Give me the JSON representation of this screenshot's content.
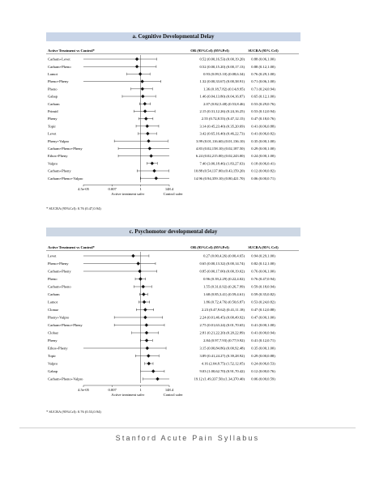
{
  "footer": {
    "text": "Stanford Acute Pain Syllabus"
  },
  "chart_data": [
    {
      "type": "forest",
      "title": "a. Cognitive Developmental Delay",
      "scale": "log",
      "xlim": [
        4.5e-05,
        148.4
      ],
      "x_ticks": [
        "4.5e-05",
        "0.007",
        "1",
        "148.4"
      ],
      "x_tick_values": [
        4.5e-05,
        0.007,
        1,
        148.4
      ],
      "left_axis_label": "Active treatment safer",
      "right_axis_label": "Control safer",
      "headers": {
        "treatment": "Active Treatment  vs Control*",
        "or": "OR (95%CrI) (95%PrI)",
        "sucra": "SUCRA (95% CrI)"
      },
      "footnote": "* SUCRA (95%CrI): 0.76 (0.47,0.94)",
      "rows": [
        {
          "label": "Carbam+Levet",
          "or": 0.52,
          "ci": [
            0.0,
            16.53
          ],
          "text": "0.52 (0.00,16.53) (0.00,19.20)",
          "sucra": "0.88 (0.06,1.00)"
        },
        {
          "label": "Carbam+Pheno",
          "or": 0.52,
          "ci": [
            0.0,
            15.2
          ],
          "text": "0.52 (0.00,15.20) (0.00,17.13)",
          "sucra": "0.88 (0.12,1.00)"
        },
        {
          "label": "Lamot",
          "or": 0.93,
          "ci": [
            0.09,
            5.1
          ],
          "text": "0.93 (0.09,5.10) (0.08,6.34)",
          "sucra": "0.76 (0.29,1.00)"
        },
        {
          "label": "Pheno+Pheny",
          "or": 1.32,
          "ci": [
            0.0,
            33.67
          ],
          "text": "1.32 (0.00,33.67) (0.00,38.91)",
          "sucra": "0.71 (0.06,1.00)"
        },
        {
          "label": "Pheno",
          "or": 1.36,
          "ci": [
            0.18,
            7.82
          ],
          "text": "1.36 (0.18,7.82) (0.14,8.95)",
          "sucra": "0.71 (0.24,0.94)"
        },
        {
          "label": "Gabap",
          "or": 1.46,
          "ci": [
            0.04,
            13.8
          ],
          "text": "1.46 (0.04,13.80) (0.04,16.87)",
          "sucra": "0.65 (0.12,1.00)"
        },
        {
          "label": "Carbam",
          "or": 2.07,
          "ci": [
            0.82,
            5.48
          ],
          "text": "2.07 (0.82,5.48) (0.53,8.46)",
          "sucra": "0.53 (0.29,0.76)"
        },
        {
          "label": "Primid",
          "or": 2.15,
          "ci": [
            0.31,
            12.26
          ],
          "text": "2.15 (0.31,12.26) (0.24,16.25)",
          "sucra": "0.53 (0.12,0.94)"
        },
        {
          "label": "Pheny",
          "or": 2.55,
          "ci": [
            0.72,
            8.55
          ],
          "text": "2.55 (0.72,8.55) (0.47,12.15)",
          "sucra": "0.47 (0.18,0.76)"
        },
        {
          "label": "Topir",
          "or": 3.14,
          "ci": [
            0.45,
            23.4
          ],
          "text": "3.14 (0.45,23.40) (0.35,20.69)",
          "sucra": "0.41 (0.06,0.88)"
        },
        {
          "label": "Levet",
          "or": 3.42,
          "ci": [
            0.65,
            16.4
          ],
          "text": "3.42 (0.65,16.40) (0.46,22.73)",
          "sucra": "0.41 (0.06,0.82)"
        },
        {
          "label": "Pheny+Valpro",
          "or": 3.99,
          "ci": [
            0.01,
            116.6
          ],
          "text": "3.99 (0.01,116.60) (0.01,136.10)",
          "sucra": "0.35 (0.00,1.00)"
        },
        {
          "label": "Carbam+Pheno+Pheny",
          "or": 4.83,
          "ci": [
            0.02,
            158.1
          ],
          "text": "4.83 (0.02,158.10) (0.02,187.50)",
          "sucra": "0.29 (0.00,1.00)"
        },
        {
          "label": "Ethos+Pheny",
          "or": 6.24,
          "ci": [
            0.02,
            215.0
          ],
          "text": "6.24 (0.02,215.00) (0.02,243.00)",
          "sucra": "0.24 (0.00,1.00)"
        },
        {
          "label": "Valpro",
          "or": 7.4,
          "ci": [
            3.0,
            18.46
          ],
          "text": "7.40 (3.00,18.46) (1.83,27.63)",
          "sucra": "0.18 (0.06,0.41)"
        },
        {
          "label": "Carbam+Pheny",
          "or": 10.88,
          "ci": [
            0.54,
            137.0
          ],
          "text": "10.88 (0.54,137.00) (0.43,159.20)",
          "sucra": "0.12 (0.00,0.82)"
        },
        {
          "label": "Carbam+Pheno+Valpro",
          "or": 14.96,
          "ci": [
            0.94,
            359.1
          ],
          "text": "14.96 (0.94,359.10) (0.80,421.70)",
          "sucra": "0.06 (0.00,0.71)"
        }
      ]
    },
    {
      "type": "forest",
      "title": "c. Psychomotor developmental delay",
      "scale": "log",
      "xlim": [
        4.5e-05,
        148.4
      ],
      "x_ticks": [
        "4.5e-05",
        "0.007",
        "1",
        "148.4"
      ],
      "x_tick_values": [
        4.5e-05,
        0.007,
        1,
        148.4
      ],
      "left_axis_label": "Active treatment safer",
      "right_axis_label": "Control safer",
      "headers": {
        "treatment": "Active Treatment  vs Control*",
        "or": "OR (95%CrI) (95%PrI)",
        "sucra": "SUCRA (95% CrI)"
      },
      "footnote": "* SUCRA (95%CrI): 0.76 (0.53,0.94)",
      "rows": [
        {
          "label": "Levet",
          "or": 0.27,
          "ci": [
            0.0,
            4.26
          ],
          "text": "0.27 (0.00,4.26) (0.00,4.65)",
          "sucra": "0.94 (0.29,1.00)"
        },
        {
          "label": "Pheno+Pheny",
          "or": 0.65,
          "ci": [
            0.0,
            13.32
          ],
          "text": "0.65 (0.00,13.32) (0.00,14.74)",
          "sucra": "0.82 (0.12,1.00)"
        },
        {
          "label": "Carbam+Pheny",
          "or": 0.85,
          "ci": [
            0.0,
            17.0
          ],
          "text": "0.85 (0.00,17.00) (0.00,19.02)",
          "sucra": "0.76 (0.06,1.00)"
        },
        {
          "label": "Pheno",
          "or": 0.96,
          "ci": [
            0.39,
            2.29
          ],
          "text": "0.96 (0.39,2.29) (0.22,4.02)",
          "sucra": "0.76 (0.47,0.94)"
        },
        {
          "label": "Carbam+Pheno",
          "or": 1.55,
          "ci": [
            0.31,
            6.92
          ],
          "text": "1.55 (0.31,6.92) (0.26,7.99)",
          "sucra": "0.59 (0.18,0.94)"
        },
        {
          "label": "Carbam",
          "or": 1.68,
          "ci": [
            0.85,
            3.41
          ],
          "text": "1.68 (0.85,3.41) (0.59,4.61)",
          "sucra": "0.59 (0.35,0.82)"
        },
        {
          "label": "Lamot",
          "or": 1.86,
          "ci": [
            0.72,
            4.76
          ],
          "text": "1.86 (0.72,4.76) (0.50,6.87)",
          "sucra": "0.53 (0.24,0.82)"
        },
        {
          "label": "Clonaz",
          "or": 2.23,
          "ci": [
            0.47,
            9.62
          ],
          "text": "2.23 (0.47,9.62) (0.41,11.18)",
          "sucra": "0.47 (0.12,0.88)"
        },
        {
          "label": "Pheny+Valpro",
          "or": 2.24,
          "ci": [
            0.01,
            46.45
          ],
          "text": "2.24 (0.01,46.45) (0.00,49.92)",
          "sucra": "0.47 (0.00,1.00)"
        },
        {
          "label": "Carbam+Pheno+Pheny",
          "or": 2.75,
          "ci": [
            0.01,
            63.24
          ],
          "text": "2.75 (0.01,63.24) (0.01,70.65)",
          "sucra": "0.41 (0.00,1.00)"
        },
        {
          "label": "Clobaz",
          "or": 2.81,
          "ci": [
            0.21,
            22.2
          ],
          "text": "2.81 (0.21,22.20) (0.20,22.89)",
          "sucra": "0.41 (0.00,0.94)"
        },
        {
          "label": "Pheny",
          "or": 2.84,
          "ci": [
            0.97,
            7.93
          ],
          "text": "2.84 (0.97,7.93) (0.77,9.92)",
          "sucra": "0.41 (0.12,0.71)"
        },
        {
          "label": "Ethos+Pheny",
          "or": 3.15,
          "ci": [
            0.0,
            84.86
          ],
          "text": "3.15 (0.00,84.86) (0.00,92.48)",
          "sucra": "0.35 (0.00,1.00)"
        },
        {
          "label": "Topir",
          "or": 3.89,
          "ci": [
            0.41,
            24.27
          ],
          "text": "3.89 (0.41,24.27) (0.39,28.92)",
          "sucra": "0.29 (0.00,0.88)"
        },
        {
          "label": "Valpro",
          "or": 4.16,
          "ci": [
            2.04,
            8.75
          ],
          "text": "4.16 (2.04,8.75) (1.52,12.05)",
          "sucra": "0.24 (0.06,0.53)"
        },
        {
          "label": "Gabap",
          "or": 9.03,
          "ci": [
            1.0,
            62.7
          ],
          "text": "9.03 (1.00,62.70) (0.91,70.42)",
          "sucra": "0.12 (0.00,0.76)"
        },
        {
          "label": "Carbam+Pheno+Valpro",
          "or": 19.12,
          "ci": [
            1.49,
            337.5
          ],
          "text": "19.12 (1.49,337.50) (1.34,370.40)",
          "sucra": "0.06 (0.00,0.59)"
        }
      ]
    }
  ]
}
